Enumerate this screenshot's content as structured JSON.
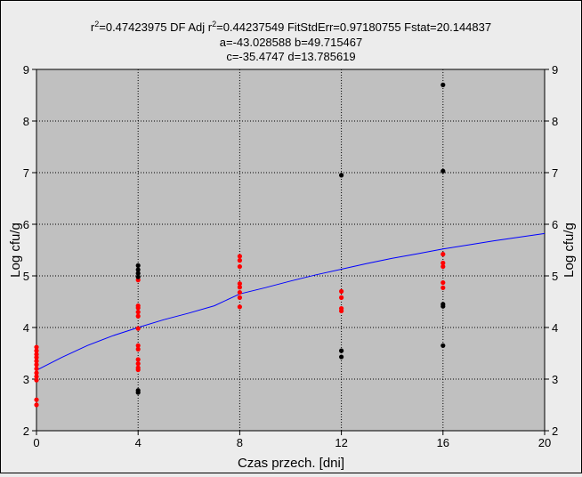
{
  "chart_data": {
    "type": "scatter",
    "stats": {
      "line1_r2_label": "r",
      "line1_r2_value": "=0.47423975  DF Adj r",
      "line1_adj_value": "=0.44237549  FitStdErr=0.97180755  Fstat=20.144837",
      "line2": "a=-43.028588 b=49.715467",
      "line3": "c=-35.4747 d=13.785619",
      "sup": "2"
    },
    "xlabel": "Czas przech. [dni]",
    "ylabel": "Log cfu/g",
    "ylabel_right": "Log cfu/g",
    "xlim": [
      0,
      20
    ],
    "ylim": [
      2,
      9
    ],
    "xticks": [
      0,
      4,
      8,
      12,
      16,
      20
    ],
    "yticks": [
      2,
      3,
      4,
      5,
      6,
      7,
      8,
      9
    ],
    "grid_x": [
      4,
      8,
      12,
      16
    ],
    "grid_y": [
      3,
      4,
      5,
      6,
      7,
      8
    ],
    "fit_curve": [
      [
        0,
        3.17
      ],
      [
        1,
        3.42
      ],
      [
        2,
        3.65
      ],
      [
        3,
        3.84
      ],
      [
        4,
        4.0
      ],
      [
        5,
        4.15
      ],
      [
        6,
        4.28
      ],
      [
        7,
        4.42
      ],
      [
        8,
        4.65
      ],
      [
        9,
        4.77
      ],
      [
        10,
        4.9
      ],
      [
        11,
        5.02
      ],
      [
        12,
        5.13
      ],
      [
        13,
        5.24
      ],
      [
        14,
        5.34
      ],
      [
        15,
        5.43
      ],
      [
        16,
        5.52
      ],
      [
        17,
        5.6
      ],
      [
        18,
        5.68
      ],
      [
        19,
        5.75
      ],
      [
        20,
        5.82
      ]
    ],
    "series": [
      {
        "color": "#ff0000",
        "points": [
          [
            0,
            3.62
          ],
          [
            0,
            3.55
          ],
          [
            0,
            3.48
          ],
          [
            0,
            3.42
          ],
          [
            0,
            3.35
          ],
          [
            0,
            3.28
          ],
          [
            0,
            3.2
          ],
          [
            0,
            3.12
          ],
          [
            0,
            3.05
          ],
          [
            0,
            2.98
          ],
          [
            0,
            2.6
          ],
          [
            0,
            2.5
          ],
          [
            4,
            4.92
          ],
          [
            4,
            4.42
          ],
          [
            4,
            4.38
          ],
          [
            4,
            4.3
          ],
          [
            4,
            4.22
          ],
          [
            4,
            3.98
          ],
          [
            4,
            3.65
          ],
          [
            4,
            3.58
          ],
          [
            4,
            3.38
          ],
          [
            4,
            3.3
          ],
          [
            4,
            3.22
          ],
          [
            4,
            3.18
          ],
          [
            8,
            5.38
          ],
          [
            8,
            5.3
          ],
          [
            8,
            5.18
          ],
          [
            8,
            4.85
          ],
          [
            8,
            4.78
          ],
          [
            8,
            4.68
          ],
          [
            8,
            4.58
          ],
          [
            8,
            4.4
          ],
          [
            12,
            4.7
          ],
          [
            12,
            4.58
          ],
          [
            12,
            4.37
          ],
          [
            12,
            4.32
          ],
          [
            16,
            5.42
          ],
          [
            16,
            5.25
          ],
          [
            16,
            5.18
          ],
          [
            16,
            4.87
          ],
          [
            16,
            4.77
          ]
        ]
      },
      {
        "color": "#000000",
        "points": [
          [
            4,
            5.2
          ],
          [
            4,
            5.12
          ],
          [
            4,
            5.05
          ],
          [
            4,
            4.98
          ],
          [
            4,
            2.78
          ],
          [
            4,
            2.74
          ],
          [
            12,
            6.95
          ],
          [
            12,
            3.55
          ],
          [
            12,
            3.43
          ],
          [
            16,
            8.7
          ],
          [
            16,
            7.03
          ],
          [
            16,
            4.45
          ],
          [
            16,
            4.41
          ],
          [
            16,
            3.65
          ]
        ]
      }
    ],
    "colors": {
      "plot_bg": "#c0c0c0",
      "page_bg": "#ececec",
      "curve": "#0000ff",
      "grid": "#000000"
    }
  }
}
